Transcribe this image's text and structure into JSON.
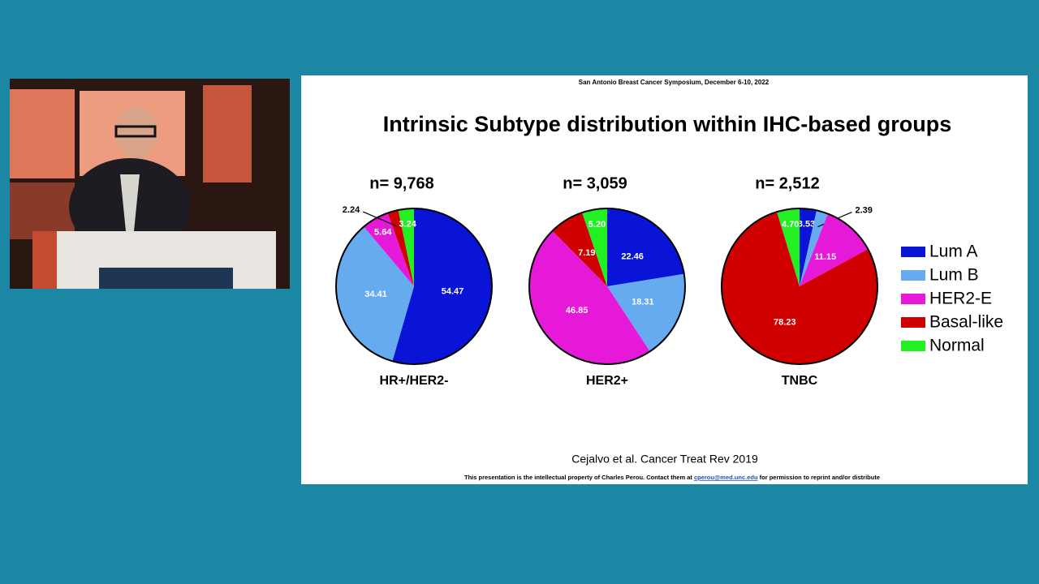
{
  "slide": {
    "header": "San Antonio Breast Cancer Symposium, December 6-10, 2022",
    "title": "Intrinsic Subtype distribution within IHC-based groups",
    "citation": "Cejalvo et al. Cancer Treat Rev 2019",
    "footer": {
      "before": "This presentation is the intellectual property of Charles Perou. Contact them at",
      "email": "cperou@med.unc.edu",
      "after": "for permission to reprint and/or distribute"
    },
    "legend": {
      "labels": [
        "Lum A",
        "Lum B",
        "HER2-E",
        "Basal-like",
        "Normal"
      ],
      "colors": [
        "#0a14d6",
        "#66aaf0",
        "#e619d8",
        "#d10000",
        "#22f022"
      ]
    }
  },
  "chart_data": [
    {
      "type": "pie",
      "title": "n= 9,768",
      "xlabel": "HR+/HER2-",
      "values": [
        54.47,
        34.41,
        5.64,
        2.24,
        3.24
      ],
      "value_labels": [
        "54.47",
        "34.41",
        "5.64",
        "2.24",
        "3.24"
      ]
    },
    {
      "type": "pie",
      "title": "n= 3,059",
      "xlabel": "HER2+",
      "values": [
        22.46,
        18.31,
        46.85,
        7.19,
        5.2
      ],
      "value_labels": [
        "22.46",
        "18.31",
        "46.85",
        "7.19",
        "5.20"
      ]
    },
    {
      "type": "pie",
      "title": "n= 2,512",
      "xlabel": "TNBC",
      "values": [
        3.53,
        2.39,
        11.15,
        78.23,
        4.7
      ],
      "value_labels": [
        "3.53",
        "2.39",
        "11.15",
        "78.23",
        "4.70"
      ]
    }
  ]
}
